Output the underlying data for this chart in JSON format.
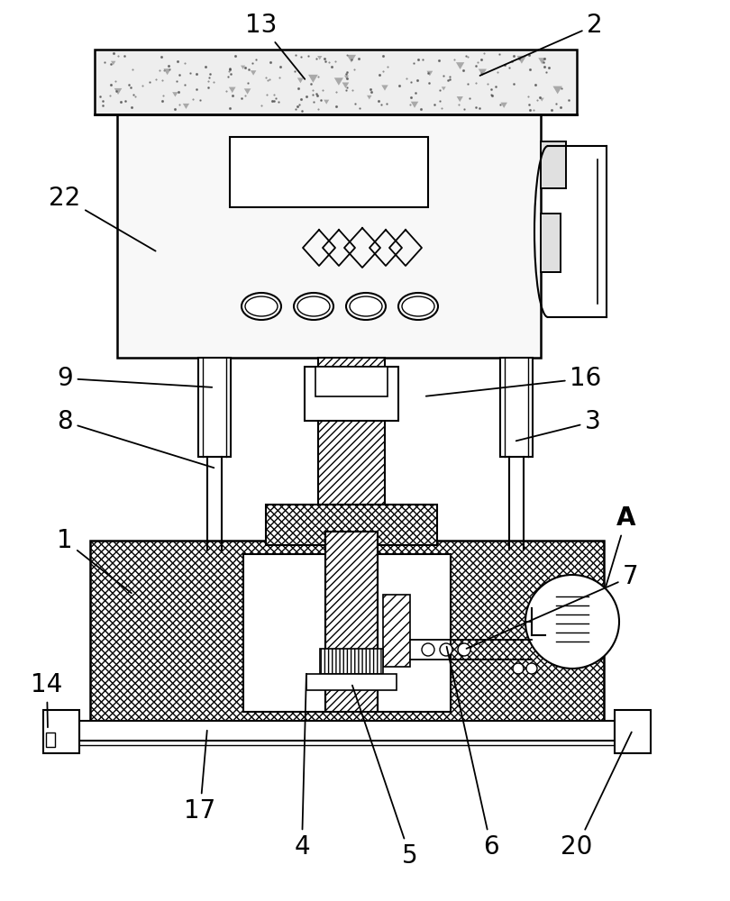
{
  "bg_color": "#ffffff",
  "line_color": "#000000",
  "fig_width": 8.1,
  "fig_height": 10.0,
  "dpi": 100
}
